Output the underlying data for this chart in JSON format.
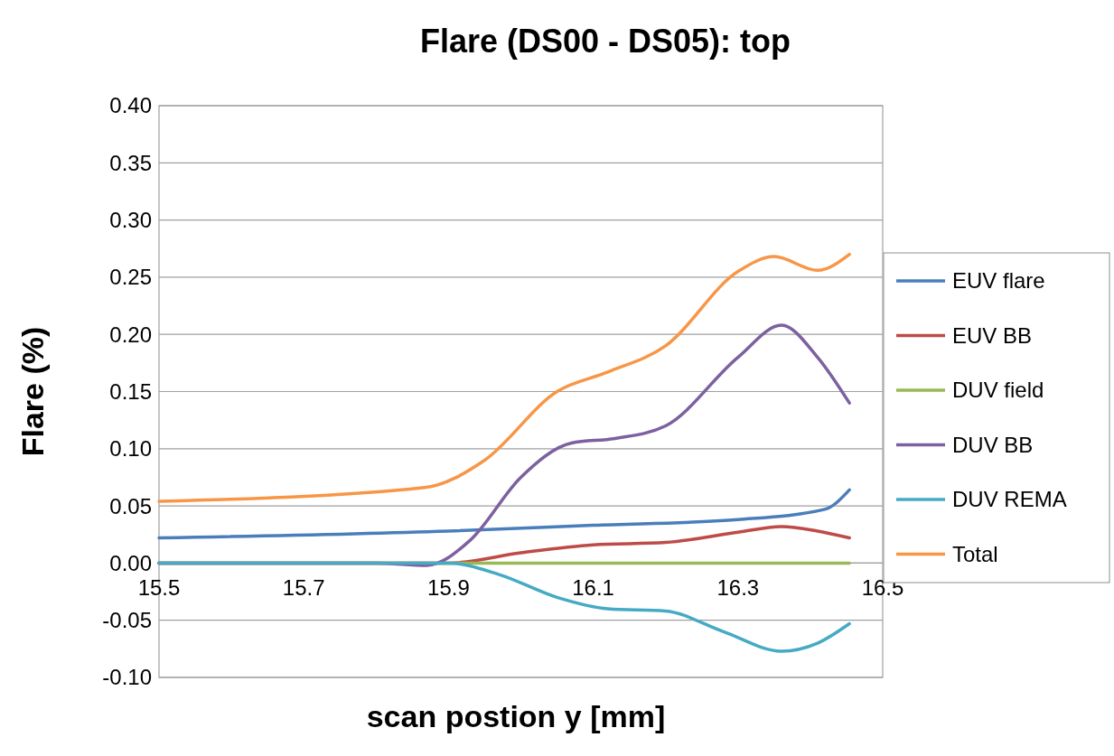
{
  "chart_data": {
    "type": "line",
    "title": "Flare (DS00 - DS05): top",
    "xlabel": "scan postion y [mm]",
    "ylabel": "Flare (%)",
    "xlim": [
      15.5,
      16.5
    ],
    "xticks": [
      15.5,
      15.7,
      15.9,
      16.1,
      16.3,
      16.5
    ],
    "ylim": [
      -0.1,
      0.4
    ],
    "yticks": [
      {
        "value": -0.1,
        "label": "-0.10"
      },
      {
        "value": -0.05,
        "label": "-0.05"
      },
      {
        "value": 0,
        "label": "0.00"
      },
      {
        "value": 0.05,
        "label": "0.05"
      },
      {
        "value": 0.1,
        "label": "0.10"
      },
      {
        "value": 0.15,
        "label": "0.15"
      },
      {
        "value": 0.2,
        "label": "0.20"
      },
      {
        "value": 0.25,
        "label": "0.25"
      },
      {
        "value": 0.3,
        "label": "0.30"
      },
      {
        "value": 0.35,
        "label": "0.35"
      },
      {
        "value": 0.4,
        "label": "0.40"
      }
    ],
    "grid": "y",
    "legend": "right",
    "marker": "none",
    "line_style": "solid",
    "series": [
      {
        "name": "EUV flare",
        "color": "#4a7ebb",
        "x": [
          15.5,
          15.9,
          16.1,
          16.3,
          16.42,
          16.454
        ],
        "values": [
          0.022,
          0.028,
          0.033,
          0.038,
          0.047,
          0.064
        ]
      },
      {
        "name": "EUV BB",
        "color": "#be4b48",
        "x": [
          15.5,
          15.9,
          16.0,
          16.1,
          16.2,
          16.3,
          16.36,
          16.41,
          16.454
        ],
        "values": [
          0,
          0,
          0.009,
          0.016,
          0.018,
          0.027,
          0.032,
          0.028,
          0.022
        ]
      },
      {
        "name": "DUV field",
        "color": "#98b954",
        "x": [
          15.5,
          16.454
        ],
        "values": [
          0,
          0
        ]
      },
      {
        "name": "DUV BB",
        "color": "#7d60a0",
        "x": [
          15.5,
          15.8,
          15.87,
          15.93,
          16.0,
          16.07,
          16.13,
          16.2,
          16.3,
          16.36,
          16.41,
          16.454
        ],
        "values": [
          0,
          0,
          -0.002,
          0.02,
          0.075,
          0.105,
          0.109,
          0.12,
          0.18,
          0.208,
          0.18,
          0.14
        ]
      },
      {
        "name": "DUV REMA",
        "color": "#46aac5",
        "x": [
          15.5,
          15.9,
          15.97,
          16.05,
          16.12,
          16.2,
          16.28,
          16.36,
          16.41,
          16.454
        ],
        "values": [
          0,
          0,
          -0.01,
          -0.03,
          -0.04,
          -0.042,
          -0.06,
          -0.077,
          -0.07,
          -0.053
        ]
      },
      {
        "name": "Total",
        "color": "#f79646",
        "x": [
          15.5,
          15.867,
          15.95,
          16.05,
          16.12,
          16.2,
          16.3,
          16.35,
          16.41,
          16.454
        ],
        "values": [
          0.054,
          0.066,
          0.09,
          0.15,
          0.167,
          0.19,
          0.255,
          0.268,
          0.256,
          0.27
        ]
      }
    ]
  }
}
